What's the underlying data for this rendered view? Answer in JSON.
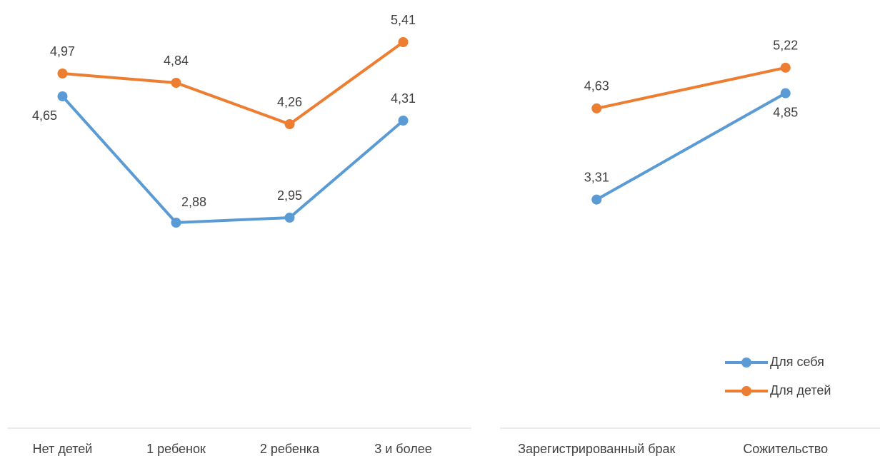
{
  "chart_data": [
    {
      "type": "line",
      "categories": [
        "Нет детей",
        "1 ребенок",
        "2 ребенка",
        "3 и более"
      ],
      "series": [
        {
          "color": "#5b9bd5",
          "values": [
            4.65,
            2.88,
            2.95,
            4.31
          ],
          "value_labels": [
            "4,65",
            "2,88",
            "2,95",
            "4,31"
          ]
        },
        {
          "color": "#ed7d31",
          "values": [
            4.97,
            4.84,
            4.26,
            5.41
          ],
          "value_labels": [
            "4,97",
            "4,84",
            "4,26",
            "5,41"
          ]
        }
      ],
      "ylim": [
        0,
        6
      ]
    },
    {
      "type": "line",
      "categories": [
        "Зарегистрированный брак",
        "Сожительство"
      ],
      "series": [
        {
          "name": "Для себя",
          "color": "#5b9bd5",
          "values": [
            3.31,
            4.85
          ],
          "value_labels": [
            "3,31",
            "4,85"
          ]
        },
        {
          "name": "Для детей",
          "color": "#ed7d31",
          "values": [
            4.63,
            5.22
          ],
          "value_labels": [
            "4,63",
            "5,22"
          ]
        }
      ],
      "ylim": [
        0,
        6.2
      ],
      "legend": "bottom-right"
    }
  ]
}
